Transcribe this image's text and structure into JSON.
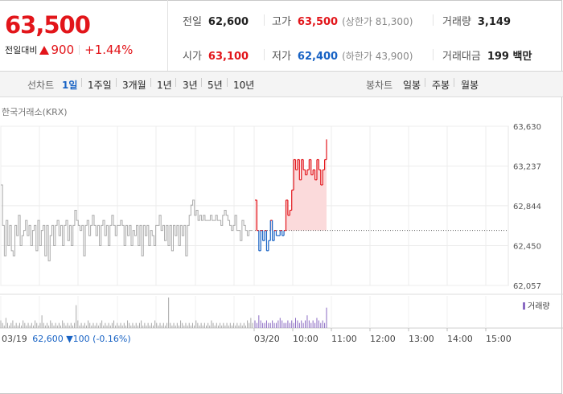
{
  "summary": {
    "price": "63,500",
    "diff_label": "전일대비",
    "diff_value": "900",
    "diff_rate": "+1.44%",
    "stats": [
      {
        "label": "전일",
        "value": "62,600",
        "sub": ""
      },
      {
        "label": "고가",
        "value": "63,500",
        "sub": "(상한가 81,300)"
      },
      {
        "label": "거래량",
        "value": "3,149",
        "sub": ""
      },
      {
        "label": "시가",
        "value": "63,100",
        "sub": ""
      },
      {
        "label": "저가",
        "value": "62,400",
        "sub": "(하한가 43,900)"
      },
      {
        "label": "거래대금",
        "value": "199 백만",
        "sub": ""
      }
    ]
  },
  "tabs": {
    "line_label": "선차트",
    "line_items": [
      "1일",
      "1주일",
      "3개월",
      "1년",
      "3년",
      "5년",
      "10년"
    ],
    "candle_label": "봉차트",
    "candle_items": [
      "일봉",
      "주봉",
      "월봉"
    ]
  },
  "exchange": "한국거래소(KRX)",
  "volume_legend": "거래량",
  "footer": {
    "date": "03/19",
    "price": "62,600",
    "change": "100",
    "rate": "(-0.16%)"
  },
  "colors": {
    "up": "#e2151a",
    "down": "#1762c4",
    "prev": "#aaaaaa",
    "fill": "#fbdadb",
    "volume": "#8a6ac2"
  },
  "chart_data": {
    "type": "line",
    "ylim": [
      62057,
      63630
    ],
    "y_ticks": [
      "63,630",
      "63,237",
      "62,844",
      "62,450",
      "62,057"
    ],
    "x_ticks": [
      "03/19",
      "03/20",
      "10:00",
      "11:00",
      "12:00",
      "13:00",
      "14:00",
      "15:00"
    ],
    "prev_close": 62600,
    "series": [
      {
        "values": [
          63050,
          62650,
          62350,
          62700,
          62450,
          62650,
          62400,
          62350,
          62650,
          62550,
          62750,
          62450,
          62550,
          62600,
          62700,
          62550,
          62650,
          62450,
          62600,
          62650,
          62400,
          62700,
          62450,
          62600,
          62650,
          62350,
          62650,
          62300,
          62550,
          62650,
          62450,
          62650,
          62700,
          62550,
          62650,
          62450,
          62650,
          62700,
          62500,
          62650,
          62450,
          62650,
          62800,
          62700,
          62650,
          62600,
          62650,
          62350,
          62650,
          62700,
          62550,
          62650,
          62750,
          62650,
          62550,
          62650,
          62450,
          62650,
          62700,
          62550,
          62650,
          62450,
          62650,
          62750,
          62650,
          62550,
          62650,
          62650,
          62700,
          62650,
          62450,
          62650,
          62550,
          62650,
          62450,
          62600,
          62550,
          62650,
          62450,
          62650,
          62350,
          62650,
          62550,
          62650,
          62450,
          62600,
          62550,
          62450,
          62650,
          62650,
          62750,
          62600,
          62650,
          62500,
          62650,
          62450,
          62650,
          62400,
          62650,
          62550,
          62650,
          62450,
          62650,
          62550,
          62650,
          62350,
          62650,
          62750,
          62850,
          62900,
          62750,
          62800,
          62700,
          62750,
          62700,
          62750,
          62700,
          62700,
          62700,
          62750,
          62700,
          62700,
          62750,
          62700,
          62700,
          62650,
          62750,
          62800,
          62750,
          62700,
          62650,
          62600,
          62650,
          62750,
          62600,
          62600,
          62500,
          62700,
          62650,
          62600,
          62550,
          62600,
          62600,
          62600
        ]
      },
      {
        "values": [
          62900,
          62600,
          62400,
          62600,
          62500,
          62600,
          62400,
          62500,
          62700,
          62500,
          62600,
          62550,
          62550,
          62600,
          62550,
          62600,
          62900,
          62750,
          62800,
          63000,
          63300,
          63200,
          63300,
          63100,
          63300,
          63200,
          63150,
          63200,
          63300,
          63150,
          63200,
          63100,
          63300,
          63200,
          63050,
          63200,
          63300,
          63500
        ]
      }
    ],
    "volume": [
      3,
      2,
      1,
      4,
      2,
      1,
      2,
      3,
      1,
      2,
      1,
      2,
      1,
      3,
      2,
      1,
      2,
      1,
      2,
      1,
      3,
      2,
      1,
      2,
      5,
      2,
      1,
      2,
      1,
      3,
      2,
      1,
      2,
      1,
      2,
      1,
      3,
      2,
      1,
      2,
      1,
      2,
      1,
      2,
      9,
      3,
      1,
      2,
      1,
      2,
      1,
      3,
      2,
      1,
      2,
      1,
      2,
      1,
      2,
      3,
      1,
      2,
      1,
      2,
      1,
      2,
      3,
      1,
      2,
      1,
      2,
      1,
      2,
      1,
      3,
      2,
      1,
      2,
      1,
      2,
      1,
      2,
      3,
      1,
      2,
      1,
      2,
      1,
      2,
      1,
      3,
      2,
      1,
      2,
      1,
      2,
      1,
      2,
      12,
      2,
      1,
      2,
      1,
      2,
      1,
      3,
      2,
      1,
      2,
      1,
      2,
      1,
      2,
      1,
      3,
      2,
      1,
      2,
      1,
      2,
      1,
      2,
      1,
      3,
      2,
      1,
      2,
      1,
      2,
      1,
      2,
      1,
      2,
      1,
      2,
      1,
      2,
      1,
      2,
      1,
      2,
      1,
      2,
      1,
      3,
      2,
      4,
      2,
      3,
      2,
      5,
      3,
      2,
      2,
      3,
      2,
      2,
      3,
      2,
      2,
      3,
      4,
      3,
      2,
      2,
      3,
      2,
      3,
      2,
      4,
      3,
      2,
      3,
      2,
      3,
      5,
      3,
      2,
      3,
      2,
      4,
      3,
      2,
      3,
      2,
      8
    ]
  }
}
